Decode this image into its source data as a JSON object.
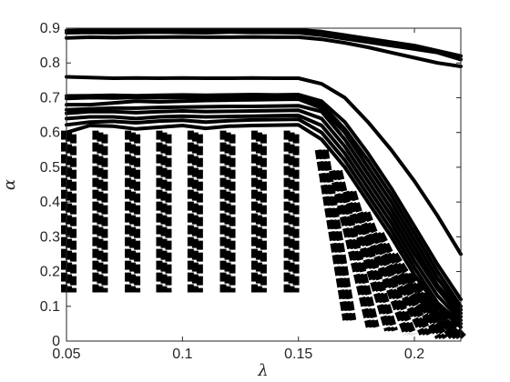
{
  "chart_data": {
    "type": "line",
    "title": "",
    "xlabel": "λ",
    "ylabel": "α",
    "xlim": [
      0.05,
      0.22
    ],
    "ylim": [
      0,
      0.9
    ],
    "xticks": [
      "0.05",
      "0.1",
      "0.15",
      "0.2"
    ],
    "xtick_values": [
      0.05,
      0.1,
      0.15,
      0.2
    ],
    "yticks": [
      "0",
      "0.1",
      "0.2",
      "0.3",
      "0.4",
      "0.5",
      "0.6",
      "0.7",
      "0.8",
      "0.9"
    ],
    "ytick_values": [
      0,
      0.1,
      0.2,
      0.3,
      0.4,
      0.5,
      0.6,
      0.7,
      0.8,
      0.9
    ],
    "grid": false,
    "legend": "none",
    "x": [
      0.05,
      0.06,
      0.07,
      0.08,
      0.09,
      0.1,
      0.11,
      0.12,
      0.13,
      0.14,
      0.15,
      0.16,
      0.17,
      0.18,
      0.19,
      0.2,
      0.21,
      0.22
    ],
    "series": [
      {
        "values": [
          0.893,
          0.894,
          0.896,
          0.895,
          0.894,
          0.896,
          0.895,
          0.894,
          0.895,
          0.896,
          0.895,
          0.89,
          0.88,
          0.87,
          0.86,
          0.85,
          0.835,
          0.82
        ]
      },
      {
        "values": [
          0.887,
          0.888,
          0.887,
          0.888,
          0.889,
          0.888,
          0.887,
          0.889,
          0.888,
          0.888,
          0.887,
          0.88,
          0.87,
          0.86,
          0.85,
          0.84,
          0.83,
          0.81
        ]
      },
      {
        "values": [
          0.872,
          0.874,
          0.873,
          0.874,
          0.874,
          0.875,
          0.874,
          0.874,
          0.875,
          0.874,
          0.874,
          0.868,
          0.858,
          0.845,
          0.83,
          0.815,
          0.8,
          0.79
        ]
      },
      {
        "values": [
          0.76,
          0.758,
          0.756,
          0.757,
          0.756,
          0.757,
          0.756,
          0.756,
          0.757,
          0.756,
          0.756,
          0.74,
          0.7,
          0.63,
          0.55,
          0.46,
          0.36,
          0.25
        ]
      },
      {
        "values": [
          0.705,
          0.706,
          0.707,
          0.706,
          0.707,
          0.708,
          0.707,
          0.708,
          0.709,
          0.708,
          0.709,
          0.69,
          0.63,
          0.54,
          0.44,
          0.33,
          0.22,
          0.12
        ]
      },
      {
        "values": [
          0.698,
          0.7,
          0.699,
          0.701,
          0.7,
          0.701,
          0.7,
          0.7,
          0.701,
          0.7,
          0.7,
          0.68,
          0.61,
          0.52,
          0.42,
          0.31,
          0.2,
          0.1
        ]
      },
      {
        "values": [
          0.68,
          0.68,
          0.685,
          0.69,
          0.688,
          0.69,
          0.692,
          0.693,
          0.694,
          0.695,
          0.696,
          0.67,
          0.6,
          0.5,
          0.4,
          0.29,
          0.18,
          0.09
        ]
      },
      {
        "values": [
          0.665,
          0.668,
          0.67,
          0.67,
          0.672,
          0.673,
          0.674,
          0.675,
          0.675,
          0.676,
          0.677,
          0.66,
          0.58,
          0.48,
          0.38,
          0.27,
          0.16,
          0.08
        ]
      },
      {
        "values": [
          0.655,
          0.66,
          0.66,
          0.657,
          0.66,
          0.662,
          0.66,
          0.661,
          0.662,
          0.663,
          0.664,
          0.64,
          0.56,
          0.46,
          0.36,
          0.25,
          0.15,
          0.07
        ]
      },
      {
        "values": [
          0.64,
          0.645,
          0.645,
          0.64,
          0.645,
          0.647,
          0.645,
          0.646,
          0.647,
          0.648,
          0.649,
          0.62,
          0.54,
          0.44,
          0.34,
          0.23,
          0.13,
          0.06
        ]
      },
      {
        "values": [
          0.622,
          0.63,
          0.632,
          0.628,
          0.633,
          0.635,
          0.63,
          0.634,
          0.636,
          0.637,
          0.638,
          0.6,
          0.52,
          0.42,
          0.32,
          0.21,
          0.11,
          0.05
        ]
      },
      {
        "values": [
          0.6,
          0.62,
          0.618,
          0.61,
          0.615,
          0.62,
          0.612,
          0.618,
          0.62,
          0.621,
          0.622,
          0.58,
          0.5,
          0.4,
          0.3,
          0.19,
          0.1,
          0.04
        ]
      }
    ],
    "dashed_columns": [
      {
        "x": 0.051,
        "y0": 0.14,
        "y1": 0.6
      },
      {
        "x": 0.0645,
        "y0": 0.14,
        "y1": 0.6
      },
      {
        "x": 0.0785,
        "y0": 0.14,
        "y1": 0.6
      },
      {
        "x": 0.092,
        "y0": 0.14,
        "y1": 0.6
      },
      {
        "x": 0.1055,
        "y0": 0.14,
        "y1": 0.6
      },
      {
        "x": 0.1195,
        "y0": 0.14,
        "y1": 0.6
      },
      {
        "x": 0.133,
        "y0": 0.14,
        "y1": 0.6
      },
      {
        "x": 0.147,
        "y0": 0.14,
        "y1": 0.6
      }
    ],
    "dashed_curves": [
      {
        "x_start": 0.16,
        "y_start": 0.55,
        "x_end": 0.172,
        "y_end": 0.06
      },
      {
        "x_start": 0.166,
        "y_start": 0.49,
        "x_end": 0.182,
        "y_end": 0.04
      },
      {
        "x_start": 0.172,
        "y_start": 0.43,
        "x_end": 0.19,
        "y_end": 0.03
      },
      {
        "x_start": 0.178,
        "y_start": 0.37,
        "x_end": 0.198,
        "y_end": 0.02
      },
      {
        "x_start": 0.184,
        "y_start": 0.31,
        "x_end": 0.205,
        "y_end": 0.02
      },
      {
        "x_start": 0.19,
        "y_start": 0.25,
        "x_end": 0.212,
        "y_end": 0.01
      },
      {
        "x_start": 0.196,
        "y_start": 0.19,
        "x_end": 0.218,
        "y_end": 0.01
      },
      {
        "x_start": 0.203,
        "y_start": 0.13,
        "x_end": 0.22,
        "y_end": 0.01
      }
    ]
  }
}
